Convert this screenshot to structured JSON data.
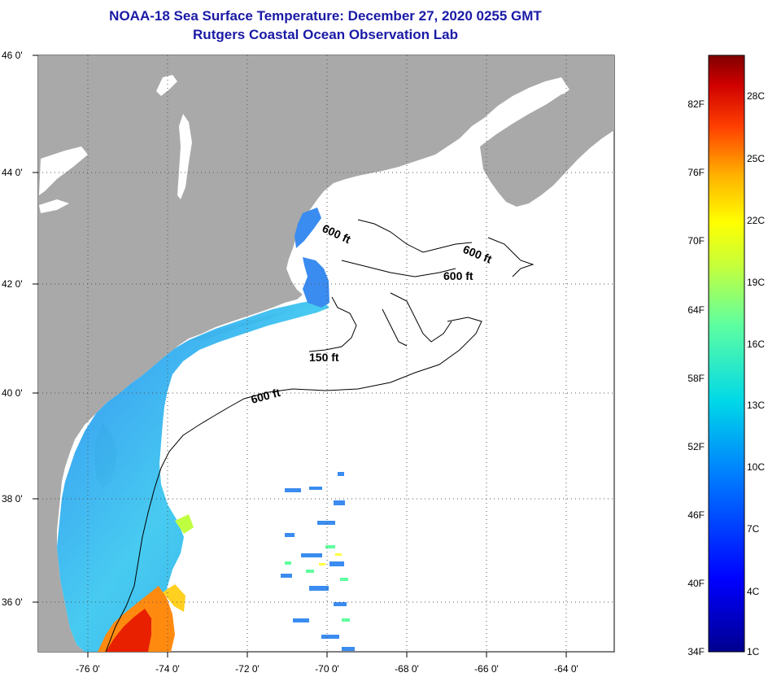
{
  "title": {
    "line1": "NOAA-18 Sea Surface Temperature:  December 27, 2020 0255 GMT",
    "line2": "Rutgers Coastal Ocean Observation Lab"
  },
  "axes": {
    "lon_labels": [
      "-76 0'",
      "-74 0'",
      "-72 0'",
      "-70 0'",
      "-68 0'",
      "-66 0'",
      "-64 0'"
    ],
    "lat_labels": [
      "46 0'",
      "44 0'",
      "42 0'",
      "40 0'",
      "38 0'",
      "36 0'"
    ]
  },
  "contour_labels": [
    "600 ft",
    "600 ft",
    "600 ft",
    "150 ft",
    "600 ft"
  ],
  "colorbar": {
    "fahrenheit": [
      "82F",
      "76F",
      "70F",
      "64F",
      "58F",
      "52F",
      "46F",
      "40F",
      "34F"
    ],
    "celsius": [
      "28C",
      "25C",
      "22C",
      "19C",
      "16C",
      "13C",
      "10C",
      "7C",
      "4C",
      "1C"
    ]
  },
  "colors": {
    "land": "#a9a9a9",
    "ocean_no_data": "#ffffff",
    "title": "#1a1aa6",
    "contour": "#000000"
  }
}
